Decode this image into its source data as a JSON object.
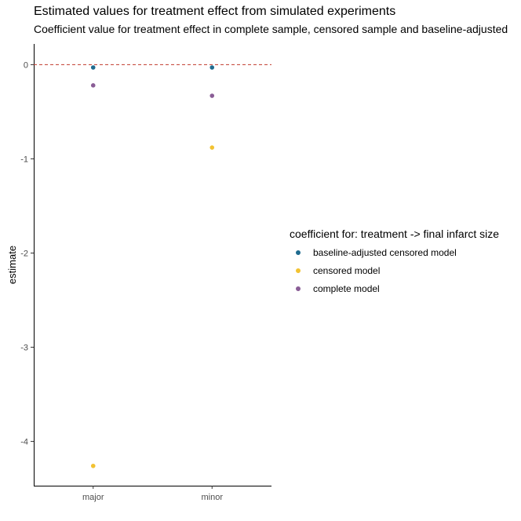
{
  "chart_data": {
    "type": "scatter",
    "title": "Estimated values for treatment effect from simulated experiments",
    "subtitle": "Coefficient value for treatment effect in complete sample, censored sample and baseline-adjusted",
    "xlabel": "",
    "ylabel": "estimate",
    "categories": [
      "major",
      "minor"
    ],
    "ylim": [
      -4.47,
      0.22
    ],
    "yticks": [
      0,
      -1,
      -2,
      -3,
      -4
    ],
    "reference_line": {
      "y": 0,
      "style": "dashed",
      "color": "#c0392b"
    },
    "grid": false,
    "legend": {
      "title": "coefficient for: treatment -> final infarct size",
      "placement": "right"
    },
    "series": [
      {
        "name": "baseline-adjusted censored model",
        "color": "#1f6b8f",
        "values": [
          -0.03,
          -0.03
        ]
      },
      {
        "name": "censored model",
        "color": "#f2c232",
        "values": [
          -4.26,
          -0.88
        ]
      },
      {
        "name": "complete model",
        "color": "#8a5d96",
        "values": [
          -0.22,
          -0.33
        ]
      }
    ]
  }
}
